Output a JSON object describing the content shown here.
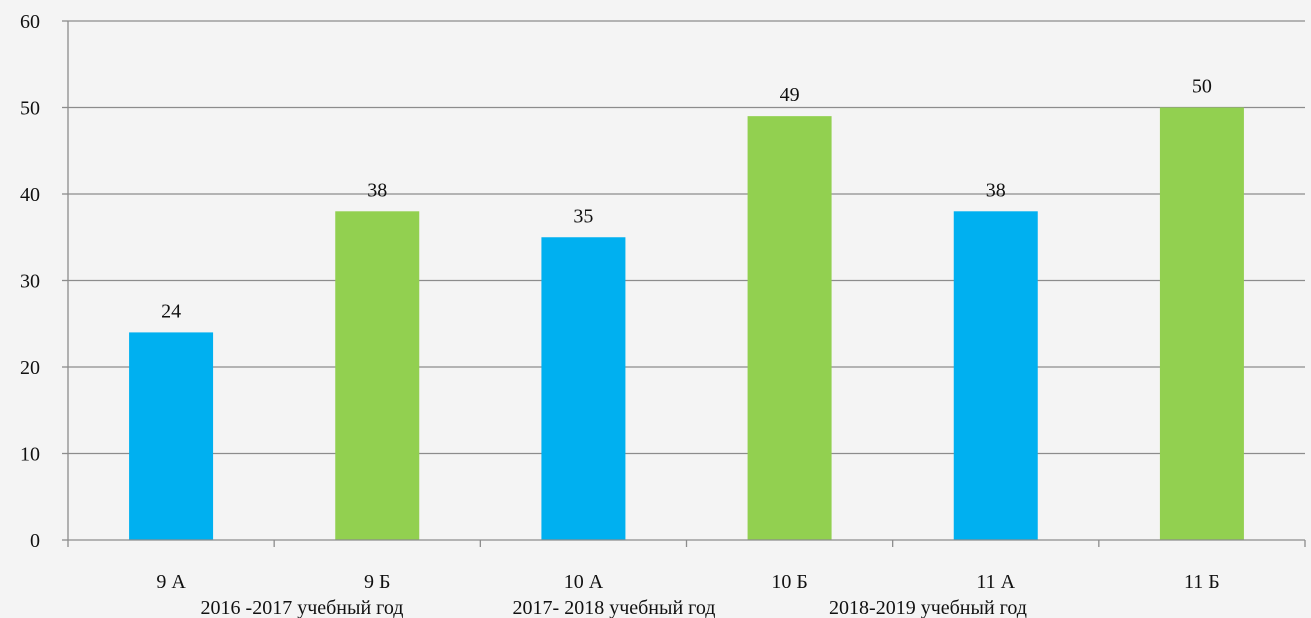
{
  "chart_data": {
    "type": "bar",
    "categories": [
      "9 А",
      "9 Б",
      "10 А",
      "10 Б",
      "11 А",
      "11 Б"
    ],
    "values": [
      24,
      38,
      35,
      49,
      38,
      50
    ],
    "bar_colors": [
      "#00b0f0",
      "#92d050",
      "#00b0f0",
      "#92d050",
      "#00b0f0",
      "#92d050"
    ],
    "ylim": [
      0,
      60
    ],
    "yticks": [
      0,
      10,
      20,
      30,
      40,
      50,
      60
    ],
    "grid": true,
    "title": "",
    "xlabel": "",
    "ylabel": "",
    "annotations": [
      "2016 -2017 учебный год",
      "2017- 2018 учебный год",
      "2018-2019 учебный год"
    ]
  },
  "style": {
    "grid_color": "#8c8c8c",
    "axis_color": "#8c8c8c",
    "background": "#f4f4f4"
  }
}
